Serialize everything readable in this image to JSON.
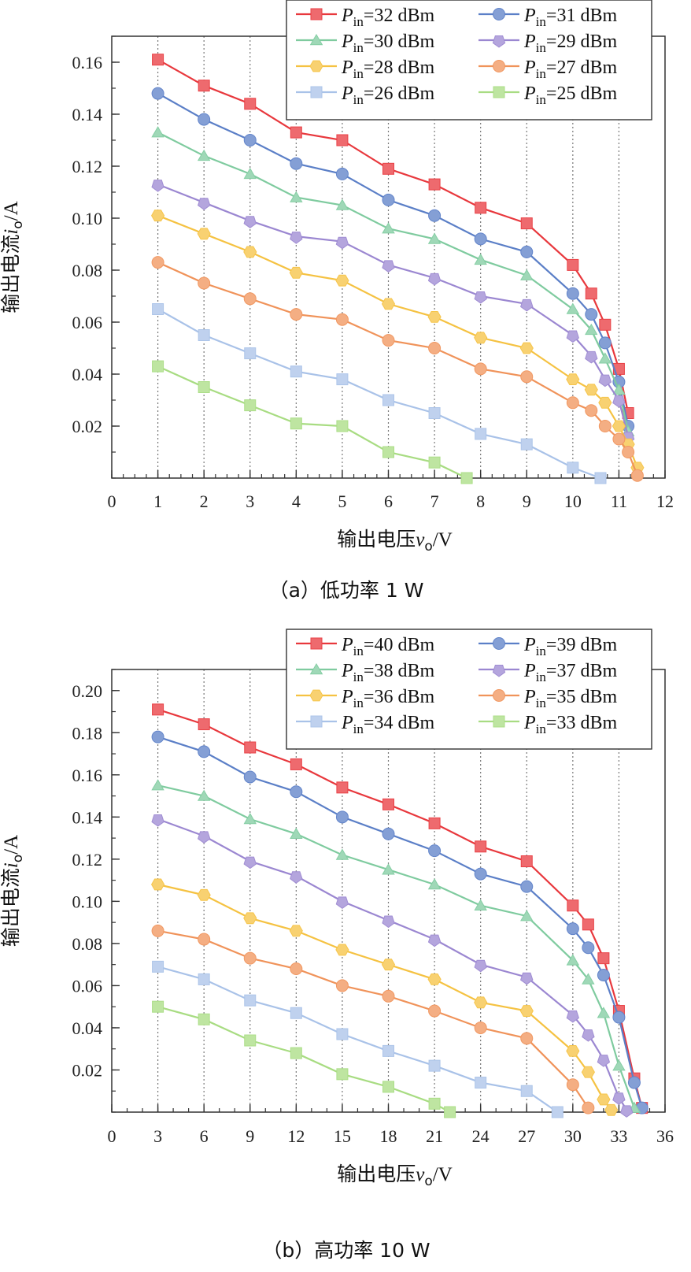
{
  "chart_data": [
    {
      "type": "line",
      "caption": "（a）低功率 1 W",
      "xlabel_main": "输出电压",
      "xlabel_var": "v",
      "xlabel_sub": "o",
      "xlabel_unit": "/V",
      "ylabel_main": "输出电流",
      "ylabel_var": "i",
      "ylabel_sub": "o",
      "ylabel_unit": "/A",
      "xlim": [
        0,
        12
      ],
      "ylim": [
        0,
        0.17
      ],
      "x_ticks": [
        0,
        1,
        2,
        3,
        4,
        5,
        6,
        7,
        8,
        9,
        10,
        11,
        12
      ],
      "x_tick_labels": [
        "0",
        "1",
        "2",
        "3",
        "4",
        "5",
        "6",
        "7",
        "8",
        "9",
        "10",
        "11",
        "12"
      ],
      "y_ticks": [
        0.02,
        0.04,
        0.06,
        0.08,
        0.1,
        0.12,
        0.14,
        0.16
      ],
      "y_tick_labels": [
        "0.02",
        "0.04",
        "0.06",
        "0.08",
        "0.10",
        "0.12",
        "0.14",
        "0.16"
      ],
      "grid_x": [
        1,
        2,
        3,
        4,
        5,
        6,
        7,
        8,
        9,
        10,
        11
      ],
      "legend_position": "top-right",
      "series": [
        {
          "name_var": "P",
          "name_sub": "in",
          "name_rest": "=32 dBm",
          "color": "#e8383d",
          "marker": "square",
          "x": [
            1,
            2,
            3,
            4,
            5,
            6,
            7,
            8,
            9,
            10,
            10.4,
            10.7,
            11,
            11.2
          ],
          "y": [
            0.161,
            0.151,
            0.144,
            0.133,
            0.13,
            0.119,
            0.113,
            0.104,
            0.098,
            0.082,
            0.071,
            0.059,
            0.042,
            0.025
          ]
        },
        {
          "name_var": "P",
          "name_sub": "in",
          "name_rest": "=31 dBm",
          "color": "#5b7fc7",
          "marker": "circle",
          "x": [
            1,
            2,
            3,
            4,
            5,
            6,
            7,
            8,
            9,
            10,
            10.4,
            10.7,
            11,
            11.2
          ],
          "y": [
            0.148,
            0.138,
            0.13,
            0.121,
            0.117,
            0.107,
            0.101,
            0.092,
            0.087,
            0.071,
            0.063,
            0.052,
            0.037,
            0.02
          ]
        },
        {
          "name_var": "P",
          "name_sub": "in",
          "name_rest": "=30 dBm",
          "color": "#7fcb9f",
          "marker": "triangle",
          "x": [
            1,
            2,
            3,
            4,
            5,
            6,
            7,
            8,
            9,
            10,
            10.4,
            10.7,
            11,
            11.2
          ],
          "y": [
            0.133,
            0.124,
            0.117,
            0.108,
            0.105,
            0.096,
            0.092,
            0.084,
            0.078,
            0.065,
            0.057,
            0.046,
            0.034,
            0.018
          ]
        },
        {
          "name_var": "P",
          "name_sub": "in",
          "name_rest": "=29 dBm",
          "color": "#9b87d1",
          "marker": "pentagon",
          "x": [
            1,
            2,
            3,
            4,
            5,
            6,
            7,
            8,
            9,
            10,
            10.4,
            10.7,
            11,
            11.2
          ],
          "y": [
            0.113,
            0.106,
            0.099,
            0.093,
            0.091,
            0.082,
            0.077,
            0.07,
            0.067,
            0.055,
            0.047,
            0.038,
            0.03,
            0.016
          ]
        },
        {
          "name_var": "P",
          "name_sub": "in",
          "name_rest": "=28 dBm",
          "color": "#f5c242",
          "marker": "hexagon",
          "x": [
            1,
            2,
            3,
            4,
            5,
            6,
            7,
            8,
            9,
            10,
            10.4,
            10.7,
            11,
            11.2,
            11.4
          ],
          "y": [
            0.101,
            0.094,
            0.087,
            0.079,
            0.076,
            0.067,
            0.062,
            0.054,
            0.05,
            0.038,
            0.034,
            0.029,
            0.02,
            0.013,
            0.004
          ]
        },
        {
          "name_var": "P",
          "name_sub": "in",
          "name_rest": "=27 dBm",
          "color": "#f0935a",
          "marker": "circle",
          "x": [
            1,
            2,
            3,
            4,
            5,
            6,
            7,
            8,
            9,
            10,
            10.4,
            10.7,
            11,
            11.2,
            11.4
          ],
          "y": [
            0.083,
            0.075,
            0.069,
            0.063,
            0.061,
            0.053,
            0.05,
            0.042,
            0.039,
            0.029,
            0.026,
            0.02,
            0.015,
            0.01,
            0.001
          ]
        },
        {
          "name_var": "P",
          "name_sub": "in",
          "name_rest": "=26 dBm",
          "color": "#a9c2e8",
          "marker": "square",
          "x": [
            1,
            2,
            3,
            4,
            5,
            6,
            7,
            8,
            9,
            10,
            10.6
          ],
          "y": [
            0.065,
            0.055,
            0.048,
            0.041,
            0.038,
            0.03,
            0.025,
            0.017,
            0.013,
            0.004,
            0.0
          ]
        },
        {
          "name_var": "P",
          "name_sub": "in",
          "name_rest": "=25 dBm",
          "color": "#a8dc82",
          "marker": "square",
          "x": [
            1,
            2,
            3,
            4,
            5,
            6,
            7,
            7.7
          ],
          "y": [
            0.043,
            0.035,
            0.028,
            0.021,
            0.02,
            0.01,
            0.006,
            0.0
          ]
        }
      ]
    },
    {
      "type": "line",
      "caption": "（b）高功率 10 W",
      "xlabel_main": "输出电压",
      "xlabel_var": "v",
      "xlabel_sub": "o",
      "xlabel_unit": "/V",
      "ylabel_main": "输出电流",
      "ylabel_var": "i",
      "ylabel_sub": "o",
      "ylabel_unit": "/A",
      "xlim": [
        0,
        36
      ],
      "ylim": [
        0,
        0.21
      ],
      "x_ticks": [
        0,
        3,
        6,
        9,
        12,
        15,
        18,
        21,
        24,
        27,
        30,
        33,
        36
      ],
      "x_tick_labels": [
        "0",
        "3",
        "6",
        "9",
        "12",
        "15",
        "18",
        "21",
        "24",
        "27",
        "30",
        "33",
        "36"
      ],
      "y_ticks": [
        0.02,
        0.04,
        0.06,
        0.08,
        0.1,
        0.12,
        0.14,
        0.16,
        0.18,
        0.2
      ],
      "y_tick_labels": [
        "0.02",
        "0.04",
        "0.06",
        "0.08",
        "0.10",
        "0.12",
        "0.14",
        "0.16",
        "0.18",
        "0.20"
      ],
      "grid_x": [
        3,
        6,
        9,
        12,
        15,
        18,
        21,
        24,
        27,
        30,
        33
      ],
      "legend_position": "top-right",
      "series": [
        {
          "name_var": "P",
          "name_sub": "in",
          "name_rest": "=40 dBm",
          "color": "#e8383d",
          "marker": "square",
          "x": [
            3,
            6,
            9,
            12,
            15,
            18,
            21,
            24,
            27,
            30,
            31,
            32,
            33,
            34,
            34.5
          ],
          "y": [
            0.191,
            0.184,
            0.173,
            0.165,
            0.154,
            0.146,
            0.137,
            0.126,
            0.119,
            0.098,
            0.089,
            0.073,
            0.048,
            0.016,
            0.002
          ]
        },
        {
          "name_var": "P",
          "name_sub": "in",
          "name_rest": "=39 dBm",
          "color": "#5b7fc7",
          "marker": "circle",
          "x": [
            3,
            6,
            9,
            12,
            15,
            18,
            21,
            24,
            27,
            30,
            31,
            32,
            33,
            34,
            34.5
          ],
          "y": [
            0.178,
            0.171,
            0.159,
            0.152,
            0.14,
            0.132,
            0.124,
            0.113,
            0.107,
            0.087,
            0.078,
            0.065,
            0.045,
            0.014,
            0.002
          ]
        },
        {
          "name_var": "P",
          "name_sub": "in",
          "name_rest": "=38 dBm",
          "color": "#7fcb9f",
          "marker": "triangle",
          "x": [
            3,
            6,
            9,
            12,
            15,
            18,
            21,
            24,
            27,
            30,
            31,
            32,
            33,
            34
          ],
          "y": [
            0.155,
            0.15,
            0.139,
            0.132,
            0.122,
            0.115,
            0.108,
            0.098,
            0.093,
            0.072,
            0.063,
            0.047,
            0.022,
            0.002
          ]
        },
        {
          "name_var": "P",
          "name_sub": "in",
          "name_rest": "=37 dBm",
          "color": "#9b87d1",
          "marker": "pentagon",
          "x": [
            3,
            6,
            9,
            12,
            15,
            18,
            21,
            24,
            27,
            30,
            31,
            32,
            33,
            33.5
          ],
          "y": [
            0.139,
            0.131,
            0.119,
            0.112,
            0.1,
            0.091,
            0.082,
            0.07,
            0.064,
            0.046,
            0.037,
            0.025,
            0.007,
            0.001
          ]
        },
        {
          "name_var": "P",
          "name_sub": "in",
          "name_rest": "=36 dBm",
          "color": "#f5c242",
          "marker": "hexagon",
          "x": [
            3,
            6,
            9,
            12,
            15,
            18,
            21,
            24,
            27,
            30,
            31,
            32,
            32.5
          ],
          "y": [
            0.108,
            0.103,
            0.092,
            0.086,
            0.077,
            0.07,
            0.063,
            0.052,
            0.048,
            0.029,
            0.019,
            0.006,
            0.001
          ]
        },
        {
          "name_var": "P",
          "name_sub": "in",
          "name_rest": "=35 dBm",
          "color": "#f0935a",
          "marker": "circle",
          "x": [
            3,
            6,
            9,
            12,
            15,
            18,
            21,
            24,
            27,
            30,
            31
          ],
          "y": [
            0.086,
            0.082,
            0.073,
            0.068,
            0.06,
            0.055,
            0.048,
            0.04,
            0.035,
            0.013,
            0.002
          ]
        },
        {
          "name_var": "P",
          "name_sub": "in",
          "name_rest": "=34 dBm",
          "color": "#a9c2e8",
          "marker": "square",
          "x": [
            3,
            6,
            9,
            12,
            15,
            18,
            21,
            24,
            27,
            29
          ],
          "y": [
            0.069,
            0.063,
            0.053,
            0.047,
            0.037,
            0.029,
            0.022,
            0.014,
            0.01,
            0.0
          ]
        },
        {
          "name_var": "P",
          "name_sub": "in",
          "name_rest": "=33 dBm",
          "color": "#a8dc82",
          "marker": "square",
          "x": [
            3,
            6,
            9,
            12,
            15,
            18,
            21,
            22
          ],
          "y": [
            0.05,
            0.044,
            0.034,
            0.028,
            0.018,
            0.012,
            0.004,
            0.0
          ]
        }
      ]
    }
  ]
}
